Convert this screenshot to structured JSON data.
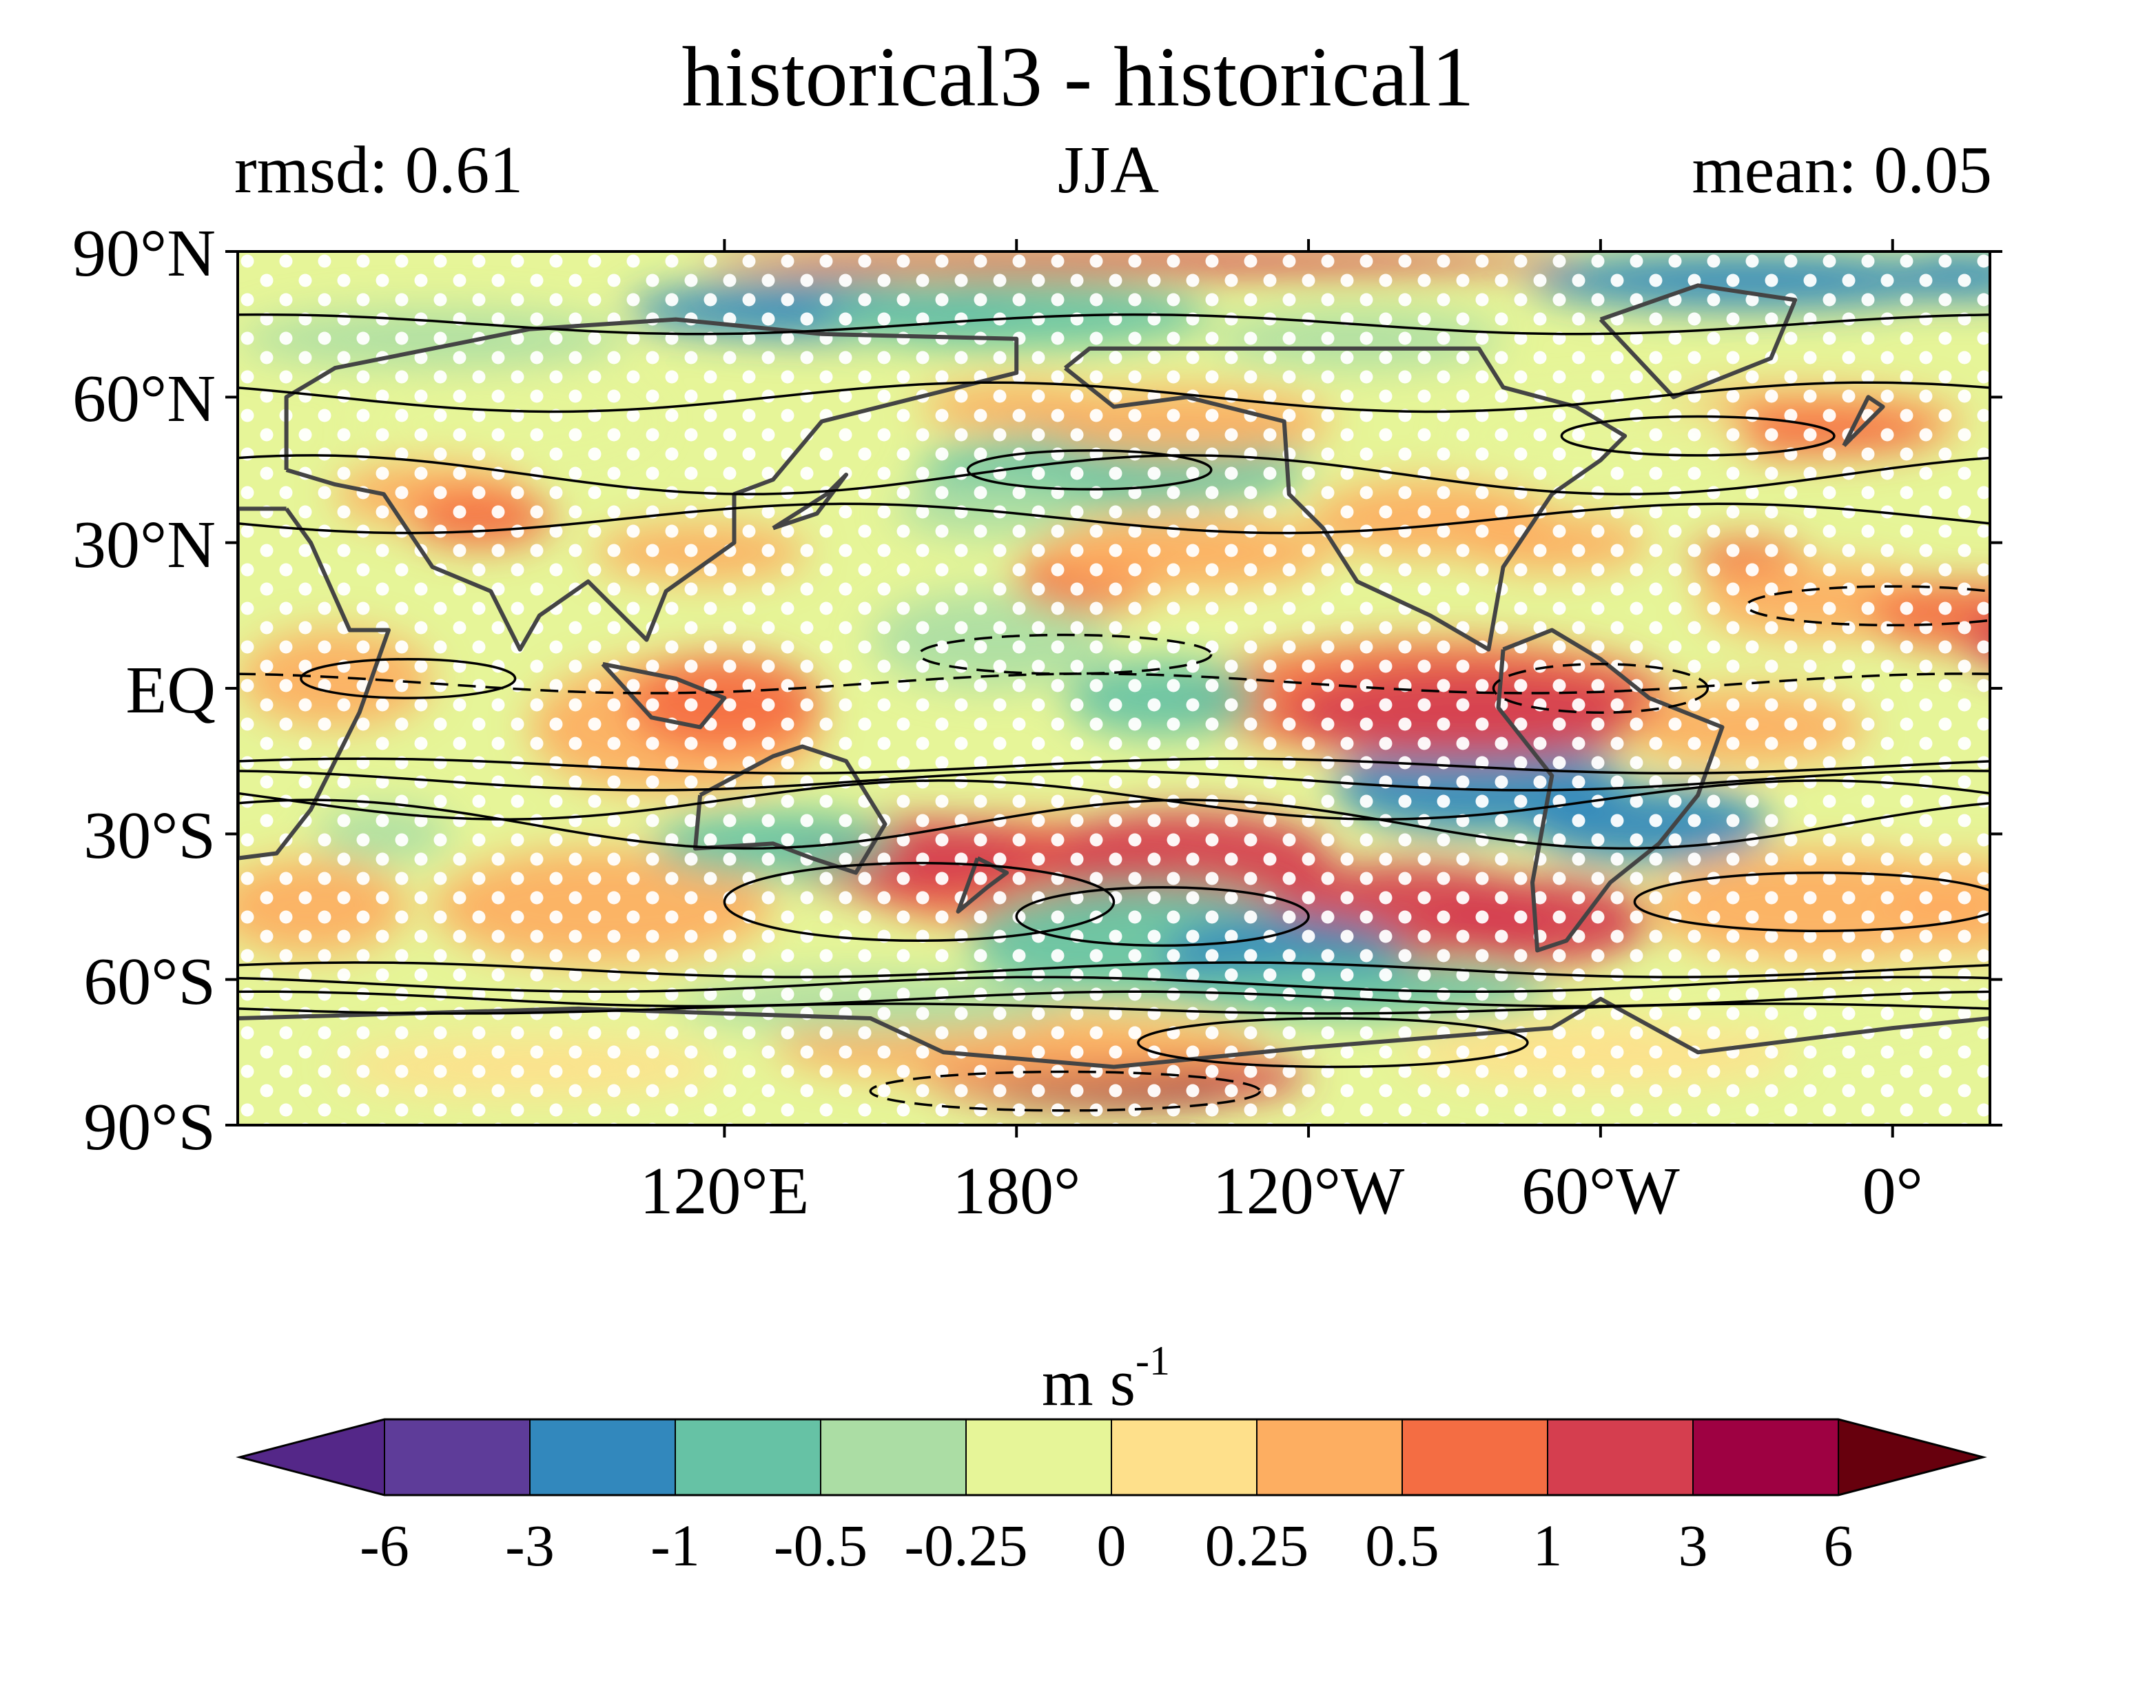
{
  "title": "historical3 - historical1",
  "subtitle_left": "rmsd: 0.61",
  "subtitle_center": "JJA",
  "subtitle_right": "mean: 0.05",
  "map": {
    "projection": "PlateCarree",
    "lon_range": [
      20,
      380
    ],
    "lat_range": [
      -90,
      90
    ],
    "lat_ticks": [
      {
        "lat": 90,
        "label": "90°N"
      },
      {
        "lat": 60,
        "label": "60°N"
      },
      {
        "lat": 30,
        "label": "30°N"
      },
      {
        "lat": 0,
        "label": "EQ"
      },
      {
        "lat": -30,
        "label": "30°S"
      },
      {
        "lat": -60,
        "label": "60°S"
      },
      {
        "lat": -90,
        "label": "90°S"
      }
    ],
    "lon_ticks": [
      {
        "lon": 120,
        "label": "120°E"
      },
      {
        "lon": 180,
        "label": "180°"
      },
      {
        "lon": 240,
        "label": "120°W"
      },
      {
        "lon": 300,
        "label": "60°W"
      },
      {
        "lon": 360,
        "label": "0°"
      }
    ],
    "field": "zonal wind difference (filled contours)",
    "stippling": "white dots marking significance",
    "line_contours": "black climatology contours, dashed negative"
  },
  "colorbar": {
    "units_main": "m s",
    "units_sup": "-1",
    "extend": "both",
    "levels": [
      "-6",
      "-3",
      "-1",
      "-0.5",
      "-0.25",
      "0",
      "0.25",
      "0.5",
      "1",
      "3",
      "6"
    ],
    "colors": [
      "#5e3c99",
      "#3288bd",
      "#66c2a5",
      "#abdda4",
      "#e6f598",
      "#fee08b",
      "#fdae61",
      "#f46d43",
      "#d53e4f",
      "#9e0142"
    ],
    "under_color": "#542788",
    "over_color": "#67000d"
  },
  "colors": {
    "land_outline": "#444444",
    "contour_line": "#000000",
    "stipple": "#ffffff"
  }
}
